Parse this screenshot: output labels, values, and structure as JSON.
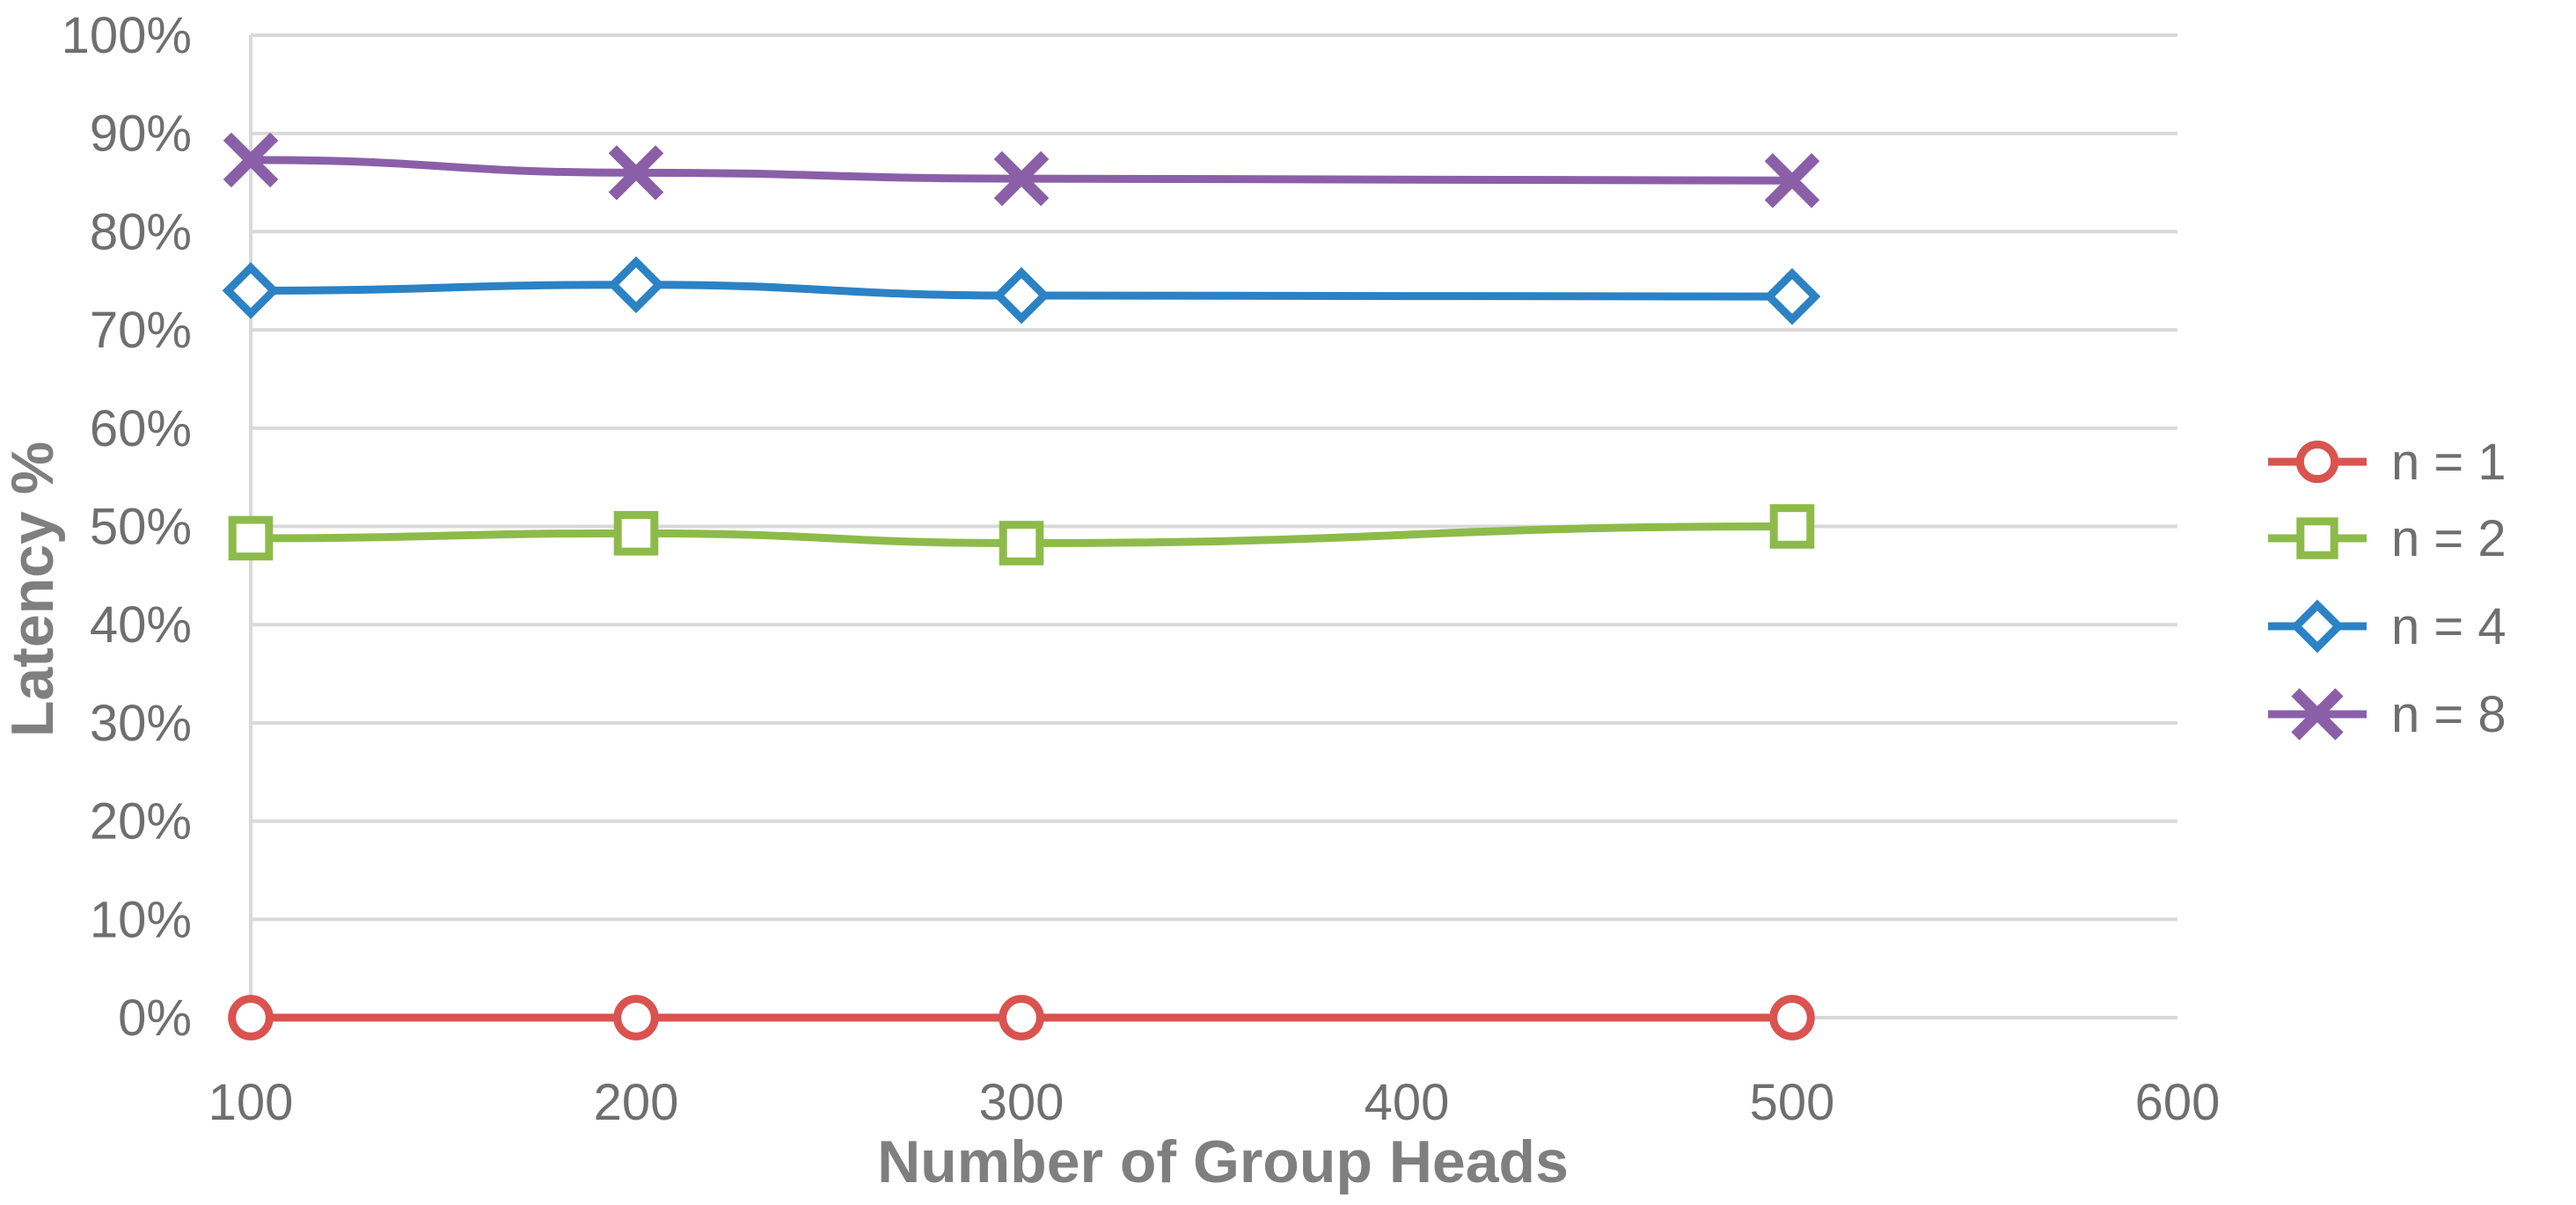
{
  "chart_data": {
    "type": "line",
    "title": "",
    "xlabel": "Number of Group Heads",
    "ylabel": "Latency %",
    "xlim": [
      100,
      600
    ],
    "ylim": [
      0,
      100
    ],
    "x_ticks": [
      100,
      200,
      300,
      400,
      500,
      600
    ],
    "y_ticks": [
      0,
      10,
      20,
      30,
      40,
      50,
      60,
      70,
      80,
      90,
      100
    ],
    "y_tick_suffix": "%",
    "grid": "horizontal",
    "legend_position": "right",
    "x": [
      100,
      200,
      300,
      500
    ],
    "series": [
      {
        "name": "n = 1",
        "values": [
          0,
          0,
          0,
          0
        ],
        "color": "#d9534f",
        "marker": "circle"
      },
      {
        "name": "n = 2",
        "values": [
          48.8,
          49.3,
          48.3,
          50.0
        ],
        "color": "#8dbb4a",
        "marker": "square"
      },
      {
        "name": "n = 4",
        "values": [
          74.0,
          74.6,
          73.5,
          73.4
        ],
        "color": "#2b82c4",
        "marker": "diamond"
      },
      {
        "name": "n = 8",
        "values": [
          87.3,
          86.0,
          85.4,
          85.2
        ],
        "color": "#8a5fa8",
        "marker": "x"
      }
    ],
    "colors": {
      "grid": "#d9d9d9",
      "axis_line": "#d9d9d9"
    }
  }
}
